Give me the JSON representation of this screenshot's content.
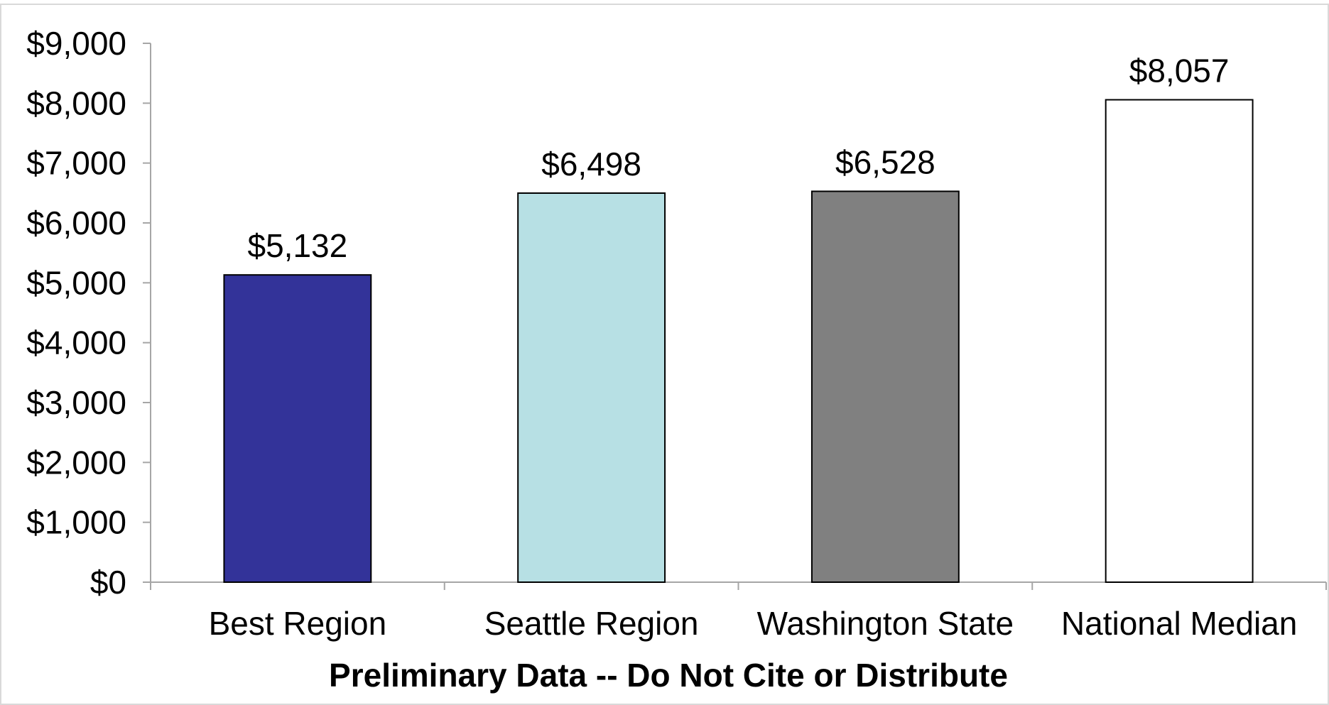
{
  "chart_data": {
    "type": "bar",
    "title": "",
    "xlabel": "",
    "ylabel": "",
    "categories": [
      "Best Region",
      "Seattle Region",
      "Washington State",
      "National Median"
    ],
    "values": [
      5132,
      6498,
      6528,
      8057
    ],
    "data_labels": [
      "$5,132",
      "$6,498",
      "$6,528",
      "$8,057"
    ],
    "bar_colors": [
      "#333399",
      "#b7e0e4",
      "#808080",
      "#ffffff"
    ],
    "bar_edge_color": "#000000",
    "ylim": [
      0,
      9000
    ],
    "y_ticks": [
      0,
      1000,
      2000,
      3000,
      4000,
      5000,
      6000,
      7000,
      8000,
      9000
    ],
    "y_tick_labels": [
      "$0",
      "$1,000",
      "$2,000",
      "$3,000",
      "$4,000",
      "$5,000",
      "$6,000",
      "$7,000",
      "$8,000",
      "$9,000"
    ],
    "grid": false,
    "legend": "none"
  },
  "footer_note": "Preliminary Data -- Do Not Cite or Distribute",
  "colors": {
    "axis": "#a6a6a6",
    "frame": "#d9d9d9",
    "text": "#000000"
  }
}
